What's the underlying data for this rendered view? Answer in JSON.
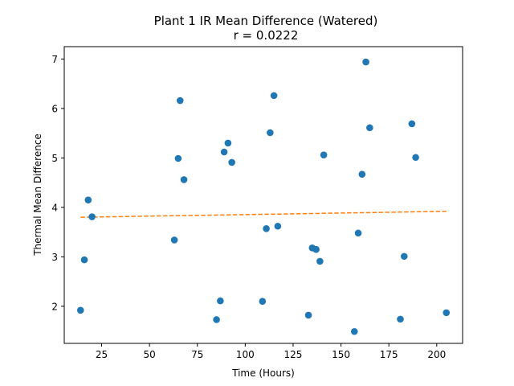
{
  "chart_data": {
    "type": "scatter",
    "title": "Plant 1 IR Mean Difference (Watered)",
    "subtitle": "r = 0.0222",
    "xlabel": "Time (Hours)",
    "ylabel": "Thermal Mean Difference",
    "xlim": [
      5.5,
      213.5
    ],
    "ylim": [
      1.25,
      7.25
    ],
    "xticks": [
      25,
      50,
      75,
      100,
      125,
      150,
      175,
      200
    ],
    "yticks": [
      2,
      3,
      4,
      5,
      6,
      7
    ],
    "grid": false,
    "colors": {
      "points": "#1f77b4",
      "trend": "#ff7f0e"
    },
    "series": [
      {
        "values": [
          {
            "x": 14,
            "y": 1.92
          },
          {
            "x": 16,
            "y": 2.94
          },
          {
            "x": 18,
            "y": 4.15
          },
          {
            "x": 20,
            "y": 3.81
          },
          {
            "x": 63,
            "y": 3.34
          },
          {
            "x": 65,
            "y": 4.99
          },
          {
            "x": 66,
            "y": 6.16
          },
          {
            "x": 68,
            "y": 4.56
          },
          {
            "x": 85,
            "y": 1.73
          },
          {
            "x": 87,
            "y": 2.11
          },
          {
            "x": 89,
            "y": 5.12
          },
          {
            "x": 91,
            "y": 5.3
          },
          {
            "x": 93,
            "y": 4.91
          },
          {
            "x": 109,
            "y": 2.1
          },
          {
            "x": 111,
            "y": 3.57
          },
          {
            "x": 113,
            "y": 5.51
          },
          {
            "x": 115,
            "y": 6.26
          },
          {
            "x": 117,
            "y": 3.62
          },
          {
            "x": 133,
            "y": 1.82
          },
          {
            "x": 135,
            "y": 3.18
          },
          {
            "x": 137,
            "y": 3.15
          },
          {
            "x": 139,
            "y": 2.91
          },
          {
            "x": 141,
            "y": 5.06
          },
          {
            "x": 157,
            "y": 1.49
          },
          {
            "x": 159,
            "y": 3.48
          },
          {
            "x": 161,
            "y": 4.67
          },
          {
            "x": 163,
            "y": 6.94
          },
          {
            "x": 165,
            "y": 5.61
          },
          {
            "x": 181,
            "y": 1.74
          },
          {
            "x": 183,
            "y": 3.01
          },
          {
            "x": 187,
            "y": 5.69
          },
          {
            "x": 189,
            "y": 5.01
          },
          {
            "x": 205,
            "y": 1.87
          }
        ]
      }
    ],
    "trendline": {
      "style": "dashed",
      "points": [
        {
          "x": 14,
          "y": 3.8
        },
        {
          "x": 205,
          "y": 3.92
        }
      ]
    }
  }
}
